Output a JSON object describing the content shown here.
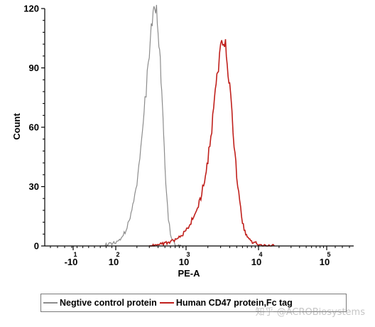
{
  "chart_data": {
    "type": "line",
    "title": "",
    "xlabel": "PE-A",
    "ylabel": "Count",
    "x_scale": "biexponential",
    "ylim": [
      0,
      120
    ],
    "y_ticks": [
      0,
      30,
      60,
      90,
      120
    ],
    "x_ticks": [
      {
        "base": "-10",
        "exp": "1",
        "value": -10
      },
      {
        "base": "10",
        "exp": "2",
        "value": 100
      },
      {
        "base": "10",
        "exp": "3",
        "value": 1000
      },
      {
        "base": "10",
        "exp": "4",
        "value": 10000
      },
      {
        "base": "10",
        "exp": "5",
        "value": 100000
      }
    ],
    "grid": false,
    "legend_position": "bottom",
    "series": [
      {
        "name": "Negtive control protein",
        "color": "#8c8c8c",
        "x": [
          60,
          85,
          100,
          120,
          140,
          160,
          180,
          200,
          220,
          240,
          260,
          280,
          300,
          320,
          340,
          360,
          380,
          400,
          420,
          440,
          460,
          480,
          500,
          530,
          560,
          600,
          640,
          700,
          760,
          850
        ],
        "y": [
          0,
          1,
          2,
          4,
          8,
          14,
          22,
          32,
          45,
          58,
          72,
          86,
          98,
          108,
          116,
          120,
          118,
          108,
          98,
          84,
          70,
          56,
          40,
          26,
          14,
          6,
          3,
          1,
          0,
          0
        ]
      },
      {
        "name": "Human CD47 protein,Fc tag",
        "color": "#c0201c",
        "x": [
          300,
          450,
          600,
          750,
          900,
          1050,
          1200,
          1400,
          1600,
          1800,
          2000,
          2200,
          2400,
          2600,
          2800,
          3000,
          3200,
          3400,
          3600,
          3800,
          4000,
          4300,
          4600,
          5000,
          5500,
          6000,
          6500,
          7000,
          8000,
          10000,
          13000,
          17000
        ],
        "y": [
          0,
          1,
          2,
          4,
          6,
          9,
          13,
          18,
          25,
          34,
          44,
          56,
          68,
          80,
          90,
          98,
          102,
          103,
          98,
          90,
          80,
          66,
          52,
          36,
          22,
          12,
          7,
          4,
          2,
          1,
          0,
          0
        ]
      }
    ]
  },
  "watermark": "知乎 @ACROBiosystems"
}
